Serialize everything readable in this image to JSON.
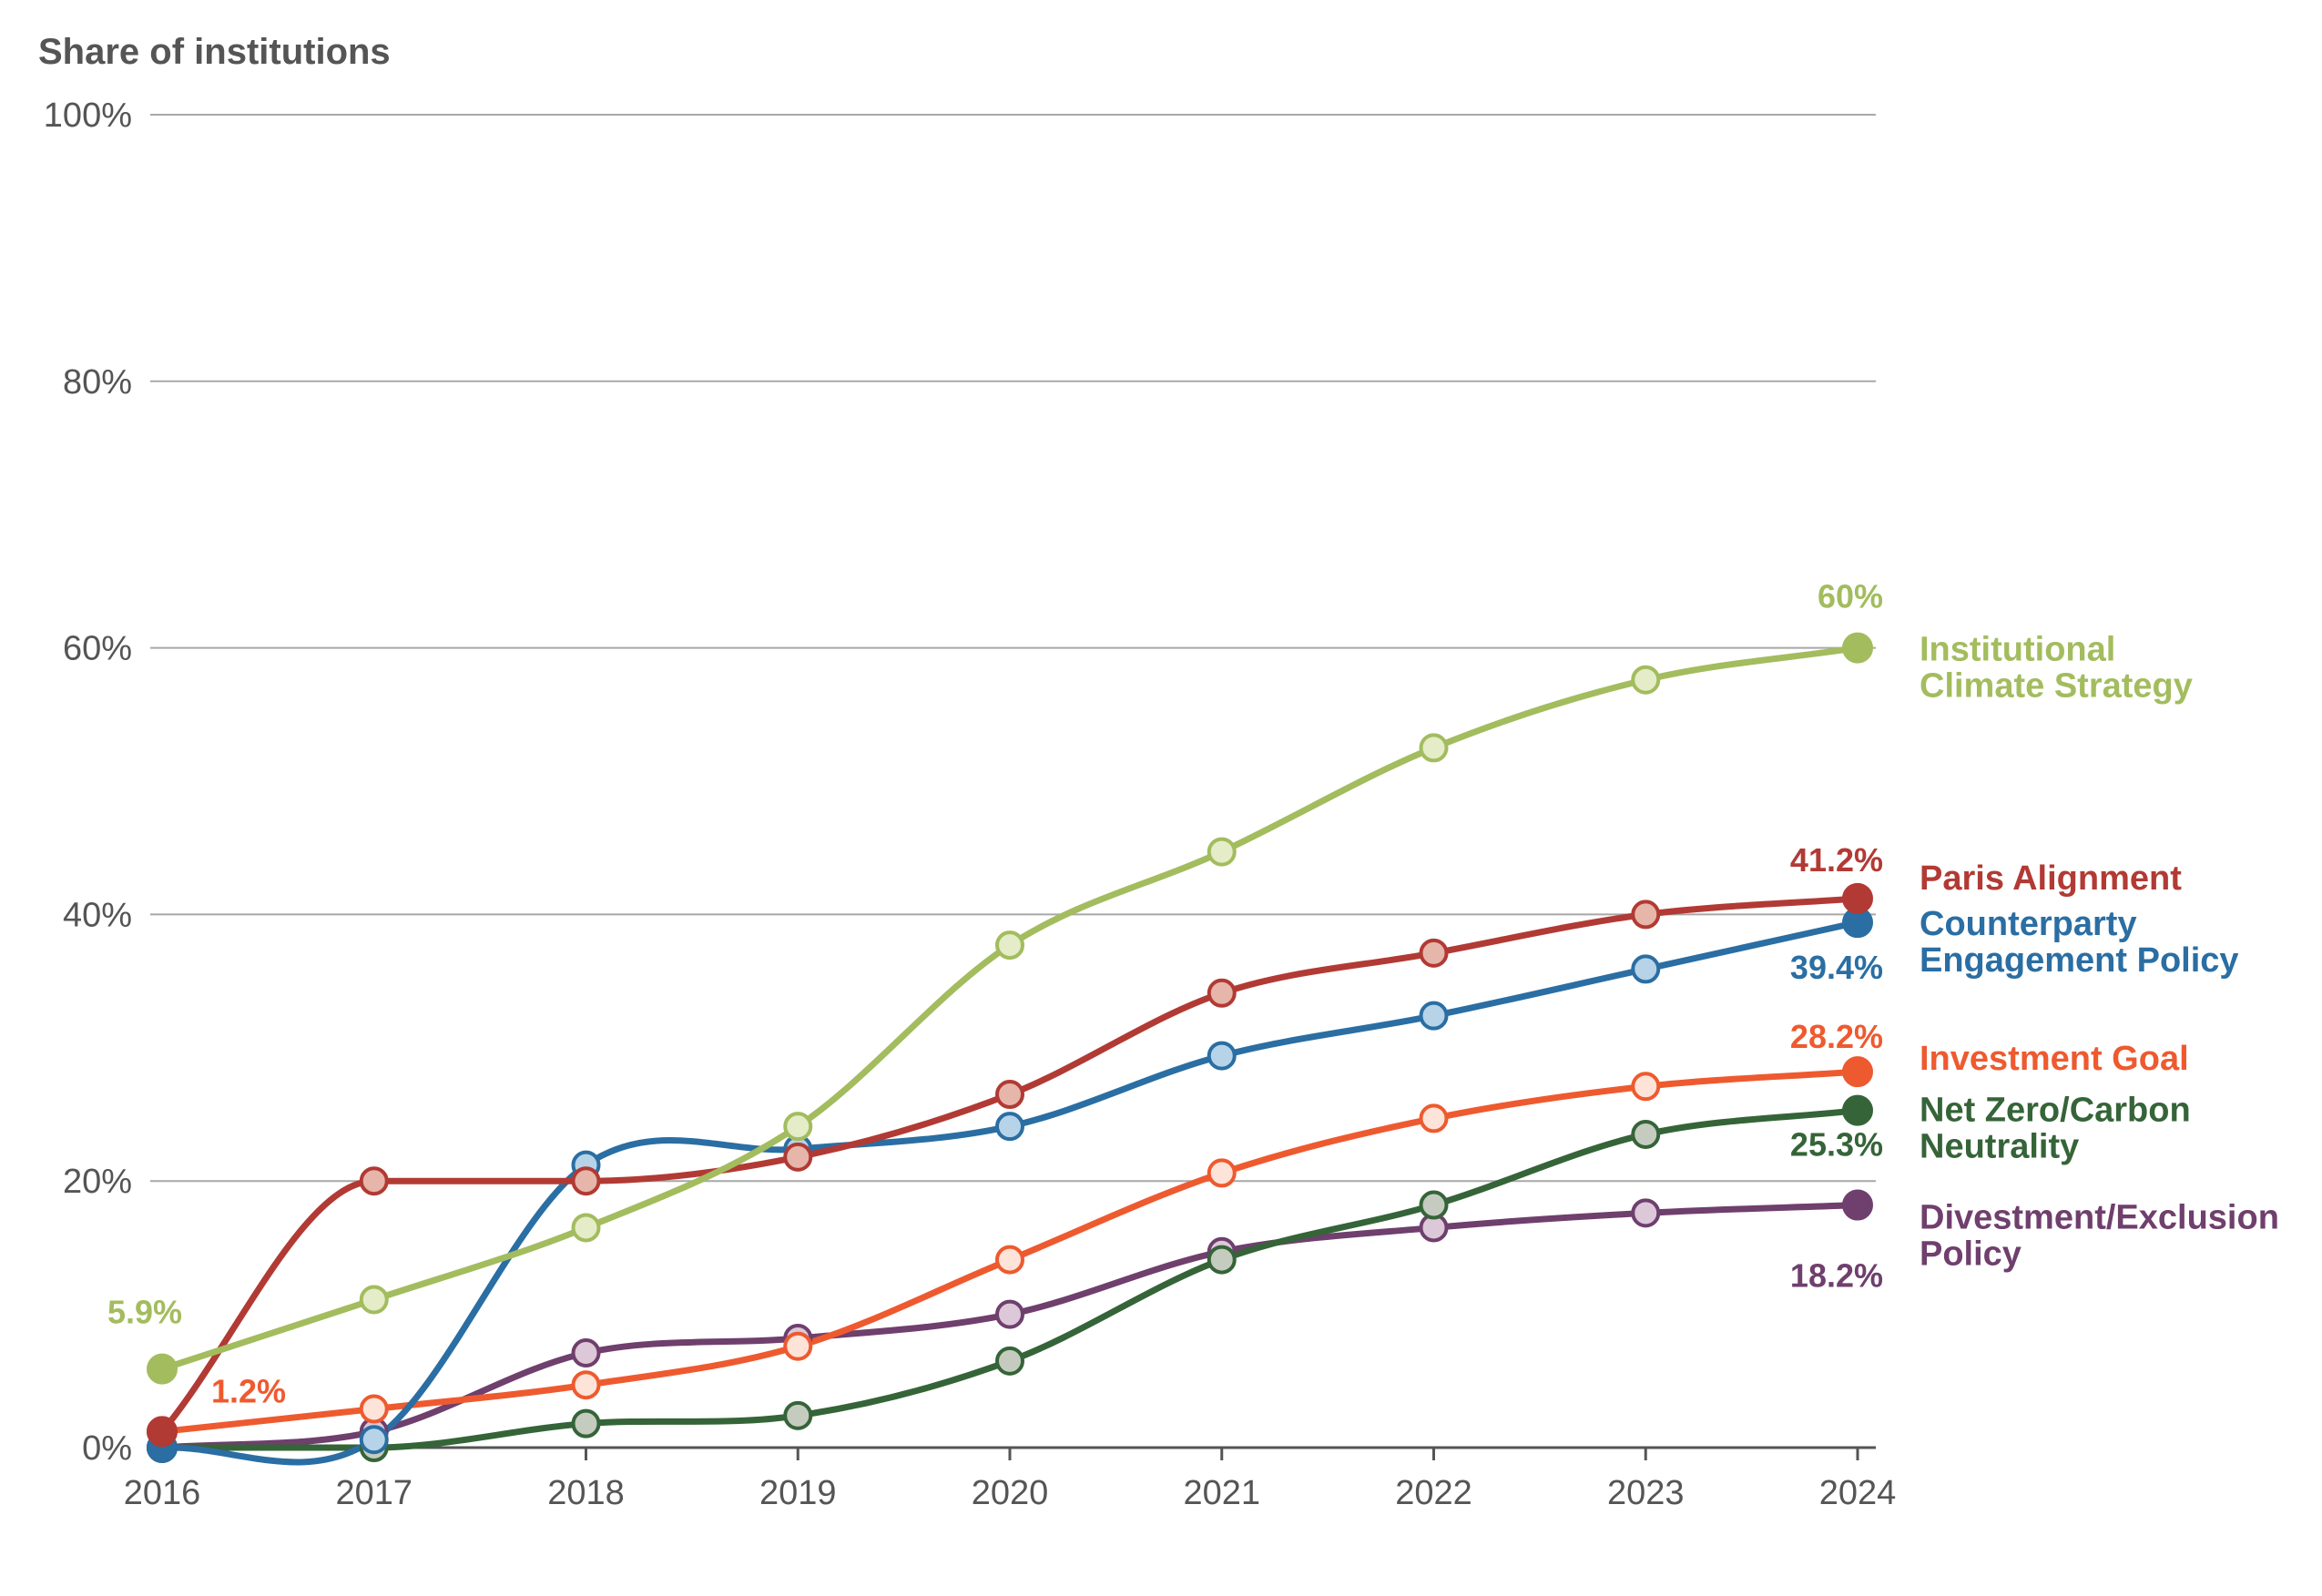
{
  "chart_data": {
    "type": "line",
    "ylabel": "Share of institutions",
    "xlabel": "",
    "ylim": [
      0,
      100
    ],
    "y_ticks": [
      "0%",
      "20%",
      "40%",
      "60%",
      "80%",
      "100%"
    ],
    "y_tick_values": [
      0,
      20,
      40,
      60,
      80,
      100
    ],
    "x": [
      "2016",
      "2017",
      "2018",
      "2019",
      "2020",
      "2021",
      "2022",
      "2023",
      "2024"
    ],
    "grid": true,
    "legend": "right-end labels",
    "series": [
      {
        "name": "Institutional Climate Strategy",
        "label_lines": [
          "Institutional",
          "Climate Strategy"
        ],
        "color": "#a3bc5e",
        "fill": "#e4ecc8",
        "values": [
          5.9,
          11.1,
          16.5,
          24.1,
          37.7,
          44.7,
          52.5,
          57.6,
          60.0
        ],
        "start_label": "5.9%",
        "end_label": "60%"
      },
      {
        "name": "Paris Alignment",
        "label_lines": [
          "Paris Alignment"
        ],
        "color": "#b23a34",
        "fill": "#e5b6a9",
        "values": [
          1.2,
          20.0,
          20.0,
          21.8,
          26.5,
          34.1,
          37.1,
          40.0,
          41.2
        ],
        "end_label": "41.2%"
      },
      {
        "name": "Counterparty Engagement Policy",
        "label_lines": [
          "Counterparty",
          "Engagement Policy"
        ],
        "color": "#2a6ea3",
        "fill": "#b7d3e8",
        "values": [
          0.0,
          0.6,
          21.2,
          22.4,
          24.1,
          29.4,
          32.4,
          35.9,
          39.4
        ],
        "end_label": "39.4%"
      },
      {
        "name": "Investment Goal",
        "label_lines": [
          "Investment Goal"
        ],
        "color": "#ee5a2f",
        "fill": "#fde3d8",
        "values": [
          1.2,
          2.9,
          4.7,
          7.6,
          14.1,
          20.6,
          24.7,
          27.1,
          28.2
        ],
        "start_label": "1.2%",
        "end_label": "28.2%"
      },
      {
        "name": "Net Zero/Carbon Neutrality",
        "label_lines": [
          "Net Zero/Carbon",
          "Neutrality"
        ],
        "color": "#356438",
        "fill": "#c5ccbf",
        "values": [
          0.0,
          0.0,
          1.8,
          2.4,
          6.5,
          14.1,
          18.2,
          23.5,
          25.3
        ],
        "end_label": "25.3%"
      },
      {
        "name": "Divestment/Exclusion Policy",
        "label_lines": [
          "Divestment/Exclusion",
          "Policy"
        ],
        "color": "#6f3f6d",
        "fill": "#dcc8d8",
        "values": [
          0.0,
          1.2,
          7.1,
          8.2,
          10.0,
          14.7,
          16.5,
          17.6,
          18.2
        ],
        "end_label": "18.2%"
      }
    ]
  }
}
